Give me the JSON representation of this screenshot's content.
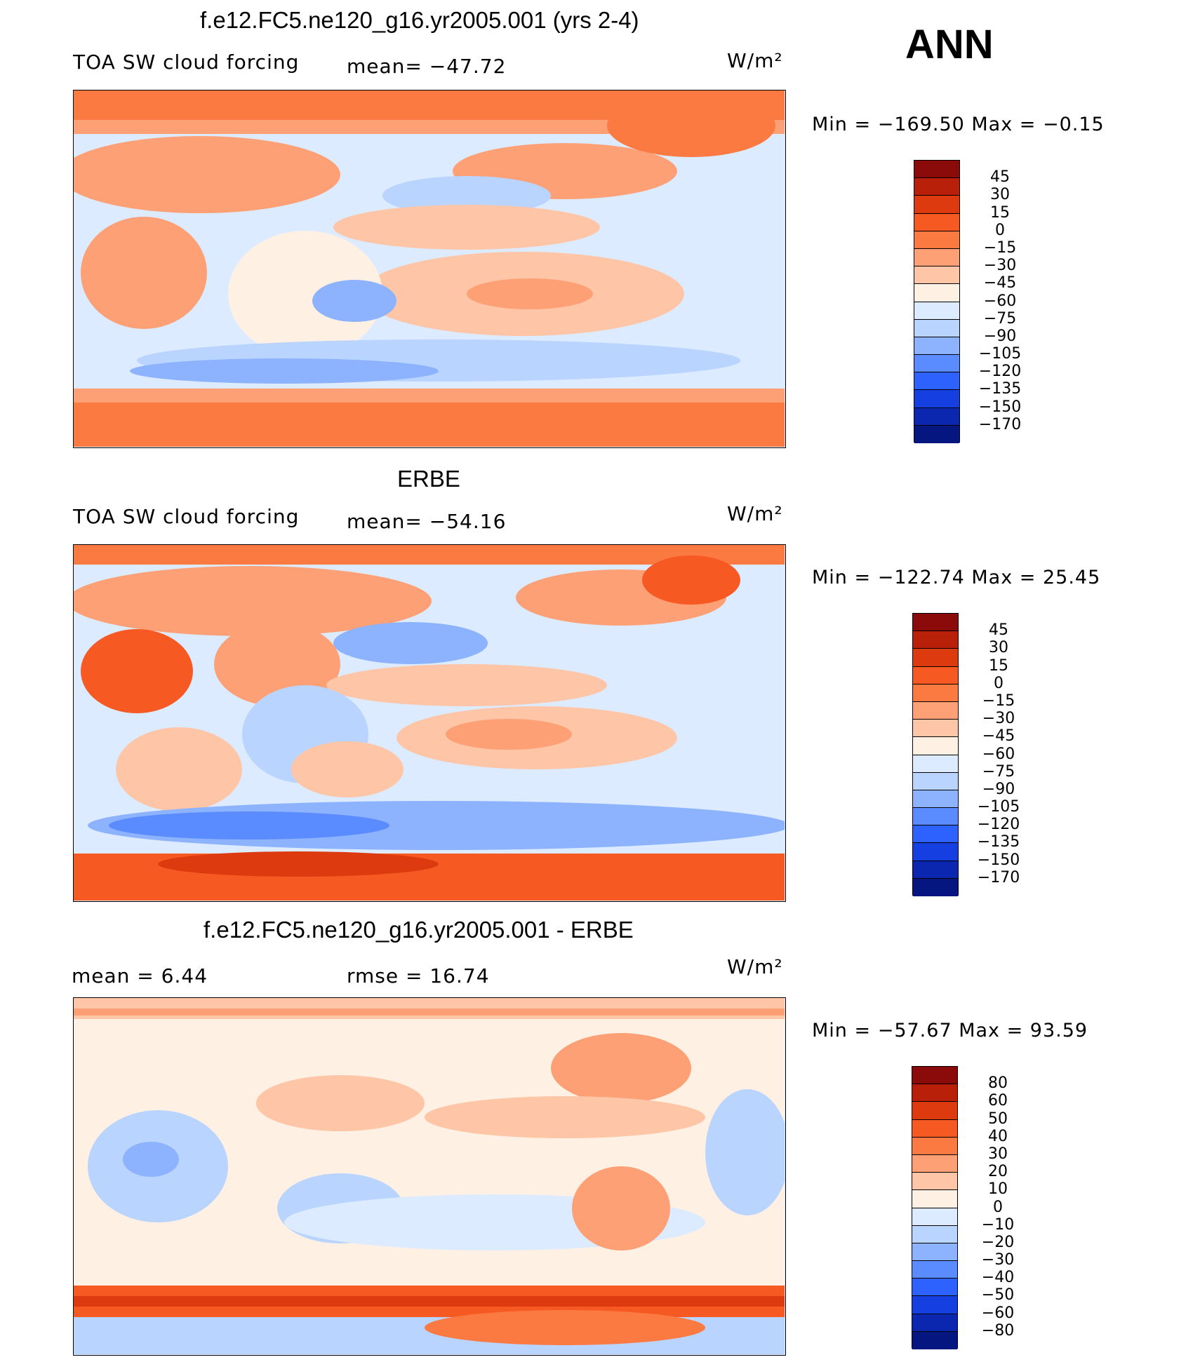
{
  "season": "ANN",
  "units": "W/m²",
  "panels": [
    {
      "title": "f.e12.FC5.ne120_g16.yr2005.001 (yrs 2-4)",
      "left_label": "TOA SW cloud forcing",
      "mid_label": "mean= −47.72",
      "units": "W/m²",
      "min_max": "Min  =  −169.50  Max  =    −0.15",
      "levels": [
        "45",
        "30",
        "15",
        "0",
        "−15",
        "−30",
        "−45",
        "−60",
        "−75",
        "−90",
        "−105",
        "−120",
        "−135",
        "−150",
        "−170"
      ]
    },
    {
      "title": "ERBE",
      "left_label": "TOA SW cloud forcing",
      "mid_label": "mean= −54.16",
      "units": "W/m²",
      "min_max": "Min  =  −122.74  Max  =   25.45",
      "levels": [
        "45",
        "30",
        "15",
        "0",
        "−15",
        "−30",
        "−45",
        "−60",
        "−75",
        "−90",
        "−105",
        "−120",
        "−135",
        "−150",
        "−170"
      ]
    },
    {
      "title": "f.e12.FC5.ne120_g16.yr2005.001 - ERBE",
      "left_label": "mean  =    6.44",
      "mid_label": "rmse  =    16.74",
      "units": "W/m²",
      "min_max": "Min  =  −57.67  Max  =   93.59",
      "levels": [
        "80",
        "60",
        "50",
        "40",
        "30",
        "20",
        "10",
        "0",
        "−10",
        "−20",
        "−30",
        "−40",
        "−50",
        "−60",
        "−80"
      ]
    }
  ],
  "colorbar_colors": [
    "#8b0a0a",
    "#b8200a",
    "#de3a10",
    "#f65a22",
    "#fb7a42",
    "#fda076",
    "#fec5a6",
    "#fff0e4",
    "#dcebff",
    "#b9d4ff",
    "#8db3ff",
    "#5a8cff",
    "#2d62ff",
    "#153fe0",
    "#0b27b0",
    "#061680"
  ]
}
